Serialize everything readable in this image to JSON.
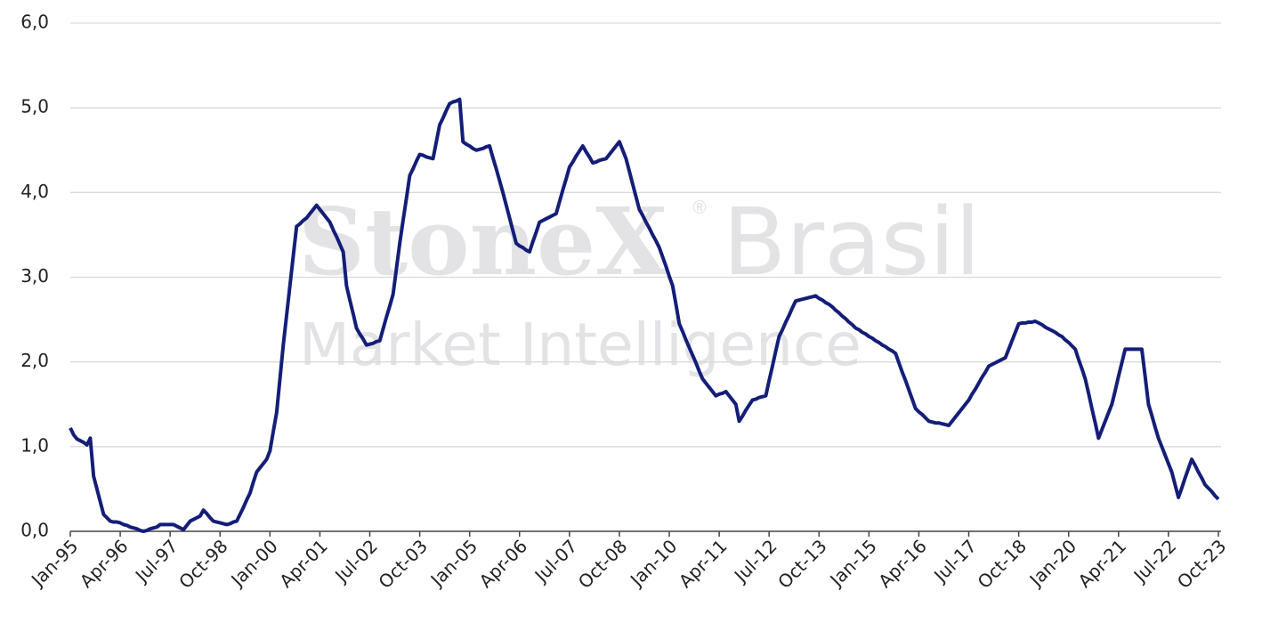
{
  "watermark": {
    "brand": "StoneX",
    "reg": "®",
    "region": "Brasil",
    "line2": "Market Intelligence"
  },
  "chart_data": {
    "type": "line",
    "categories": [
      "Jan-95",
      null,
      null,
      null,
      null,
      null,
      null,
      null,
      null,
      null,
      null,
      null,
      null,
      null,
      null,
      "Apr-96",
      null,
      null,
      null,
      null,
      null,
      null,
      null,
      null,
      null,
      null,
      null,
      null,
      null,
      null,
      "Jul-97",
      null,
      null,
      null,
      null,
      null,
      null,
      null,
      null,
      null,
      null,
      null,
      null,
      null,
      null,
      "Oct-98",
      null,
      null,
      null,
      null,
      null,
      null,
      null,
      null,
      null,
      null,
      null,
      null,
      null,
      null,
      "Jan-00",
      null,
      null,
      null,
      null,
      null,
      null,
      null,
      null,
      null,
      null,
      null,
      null,
      null,
      null,
      "Apr-01",
      null,
      null,
      null,
      null,
      null,
      null,
      null,
      null,
      null,
      null,
      null,
      null,
      null,
      null,
      "Jul-02",
      null,
      null,
      null,
      null,
      null,
      null,
      null,
      null,
      null,
      null,
      null,
      null,
      null,
      null,
      "Oct-03",
      null,
      null,
      null,
      null,
      null,
      null,
      null,
      null,
      null,
      null,
      null,
      null,
      null,
      null,
      "Jan-05",
      null,
      null,
      null,
      null,
      null,
      null,
      null,
      null,
      null,
      null,
      null,
      null,
      null,
      null,
      "Apr-06",
      null,
      null,
      null,
      null,
      null,
      null,
      null,
      null,
      null,
      null,
      null,
      null,
      null,
      null,
      "Jul-07",
      null,
      null,
      null,
      null,
      null,
      null,
      null,
      null,
      null,
      null,
      null,
      null,
      null,
      null,
      "Oct-08",
      null,
      null,
      null,
      null,
      null,
      null,
      null,
      null,
      null,
      null,
      null,
      null,
      null,
      null,
      "Jan-10",
      null,
      null,
      null,
      null,
      null,
      null,
      null,
      null,
      null,
      null,
      null,
      null,
      null,
      null,
      "Apr-11",
      null,
      null,
      null,
      null,
      null,
      null,
      null,
      null,
      null,
      null,
      null,
      null,
      null,
      null,
      "Jul-12",
      null,
      null,
      null,
      null,
      null,
      null,
      null,
      null,
      null,
      null,
      null,
      null,
      null,
      null,
      "Oct-13",
      null,
      null,
      null,
      null,
      null,
      null,
      null,
      null,
      null,
      null,
      null,
      null,
      null,
      null,
      "Jan-15",
      null,
      null,
      null,
      null,
      null,
      null,
      null,
      null,
      null,
      null,
      null,
      null,
      null,
      null,
      "Apr-16",
      null,
      null,
      null,
      null,
      null,
      null,
      null,
      null,
      null,
      null,
      null,
      null,
      null,
      null,
      "Jul-17",
      null,
      null,
      null,
      null,
      null,
      null,
      null,
      null,
      null,
      null,
      null,
      null,
      null,
      null,
      "Oct-18",
      null,
      null,
      null,
      null,
      null,
      null,
      null,
      null,
      null,
      null,
      null,
      null,
      null,
      null,
      "Jan-20",
      null,
      null,
      null,
      null,
      null,
      null,
      null,
      null,
      null,
      null,
      null,
      null,
      null,
      null,
      "Apr-21",
      null,
      null,
      null,
      null,
      null,
      null,
      null,
      null,
      null,
      null,
      null,
      null,
      null,
      null,
      "Jul-22",
      null,
      null,
      null,
      null,
      null,
      null,
      null,
      null,
      null,
      null,
      null,
      null,
      null,
      null,
      "Oct-23"
    ],
    "series": [
      {
        "color": "#141e78",
        "values": [
          1.22,
          1.14,
          1.09,
          1.07,
          1.05,
          1.02,
          1.1,
          0.65,
          0.5,
          0.35,
          0.2,
          0.16,
          0.12,
          0.11,
          0.11,
          0.1,
          0.08,
          0.07,
          0.05,
          0.04,
          0.03,
          0.01,
          0.0,
          0.01,
          0.03,
          0.04,
          0.05,
          0.08,
          0.08,
          0.08,
          0.08,
          0.08,
          0.06,
          0.04,
          0.02,
          0.07,
          0.12,
          0.14,
          0.16,
          0.18,
          0.25,
          0.21,
          0.16,
          0.12,
          0.11,
          0.1,
          0.09,
          0.08,
          0.09,
          0.11,
          0.12,
          0.2,
          0.28,
          0.37,
          0.45,
          0.58,
          0.7,
          0.75,
          0.8,
          0.85,
          0.95,
          1.18,
          1.4,
          1.8,
          2.2,
          2.55,
          2.9,
          3.25,
          3.6,
          3.63,
          3.67,
          3.7,
          3.75,
          3.8,
          3.85,
          3.8,
          3.75,
          3.7,
          3.65,
          3.56,
          3.48,
          3.39,
          3.3,
          2.9,
          2.73,
          2.57,
          2.4,
          2.33,
          2.27,
          2.2,
          2.21,
          2.22,
          2.24,
          2.25,
          2.39,
          2.53,
          2.66,
          2.8,
          3.1,
          3.4,
          3.67,
          3.93,
          4.2,
          4.28,
          4.37,
          4.45,
          4.44,
          4.42,
          4.41,
          4.4,
          4.6,
          4.8,
          4.88,
          4.97,
          5.05,
          5.07,
          5.08,
          5.1,
          4.6,
          4.57,
          4.55,
          4.52,
          4.5,
          4.51,
          4.52,
          4.54,
          4.55,
          4.41,
          4.28,
          4.14,
          4.0,
          3.85,
          3.7,
          3.55,
          3.4,
          3.37,
          3.35,
          3.32,
          3.3,
          3.42,
          3.53,
          3.65,
          3.67,
          3.69,
          3.71,
          3.73,
          3.75,
          3.89,
          4.03,
          4.16,
          4.3,
          4.36,
          4.43,
          4.49,
          4.55,
          4.48,
          4.42,
          4.35,
          4.36,
          4.38,
          4.39,
          4.4,
          4.45,
          4.5,
          4.55,
          4.6,
          4.5,
          4.4,
          4.25,
          4.1,
          3.95,
          3.8,
          3.73,
          3.65,
          3.58,
          3.5,
          3.43,
          3.35,
          3.24,
          3.13,
          3.01,
          2.9,
          2.68,
          2.45,
          2.36,
          2.26,
          2.17,
          2.08,
          1.99,
          1.89,
          1.8,
          1.75,
          1.7,
          1.65,
          1.6,
          1.62,
          1.63,
          1.65,
          1.6,
          1.55,
          1.5,
          1.3,
          1.36,
          1.43,
          1.49,
          1.55,
          1.56,
          1.58,
          1.59,
          1.6,
          1.78,
          1.95,
          2.13,
          2.3,
          2.38,
          2.47,
          2.55,
          2.64,
          2.72,
          2.73,
          2.74,
          2.75,
          2.76,
          2.77,
          2.78,
          2.75,
          2.73,
          2.7,
          2.68,
          2.65,
          2.61,
          2.58,
          2.54,
          2.51,
          2.47,
          2.44,
          2.4,
          2.38,
          2.35,
          2.33,
          2.3,
          2.28,
          2.25,
          2.23,
          2.2,
          2.18,
          2.15,
          2.13,
          2.1,
          1.99,
          1.88,
          1.78,
          1.67,
          1.56,
          1.45,
          1.41,
          1.38,
          1.34,
          1.3,
          1.29,
          1.28,
          1.28,
          1.27,
          1.26,
          1.25,
          1.3,
          1.35,
          1.4,
          1.45,
          1.5,
          1.55,
          1.62,
          1.68,
          1.75,
          1.82,
          1.88,
          1.95,
          1.97,
          1.99,
          2.01,
          2.03,
          2.05,
          2.15,
          2.25,
          2.35,
          2.45,
          2.46,
          2.46,
          2.47,
          2.47,
          2.48,
          2.46,
          2.44,
          2.41,
          2.39,
          2.37,
          2.35,
          2.32,
          2.3,
          2.26,
          2.23,
          2.19,
          2.15,
          2.03,
          1.92,
          1.8,
          1.63,
          1.45,
          1.28,
          1.1,
          1.2,
          1.3,
          1.4,
          1.5,
          1.66,
          1.83,
          1.99,
          2.15,
          2.15,
          2.15,
          2.15,
          2.15,
          2.15,
          1.83,
          1.5,
          1.37,
          1.23,
          1.1,
          1.0,
          0.9,
          0.8,
          0.7,
          0.55,
          0.4,
          0.51,
          0.63,
          0.74,
          0.85,
          0.78,
          0.7,
          0.63,
          0.55,
          0.51,
          0.47,
          0.42,
          0.38
        ]
      }
    ],
    "ylim": [
      0,
      6
    ],
    "yticks": [
      {
        "value": 0,
        "label": "0,0"
      },
      {
        "value": 1,
        "label": "1,0"
      },
      {
        "value": 2,
        "label": "2,0"
      },
      {
        "value": 3,
        "label": "3,0"
      },
      {
        "value": 4,
        "label": "4,0"
      },
      {
        "value": 5,
        "label": "5,0"
      },
      {
        "value": 6,
        "label": "6,0"
      }
    ],
    "grid": true
  }
}
